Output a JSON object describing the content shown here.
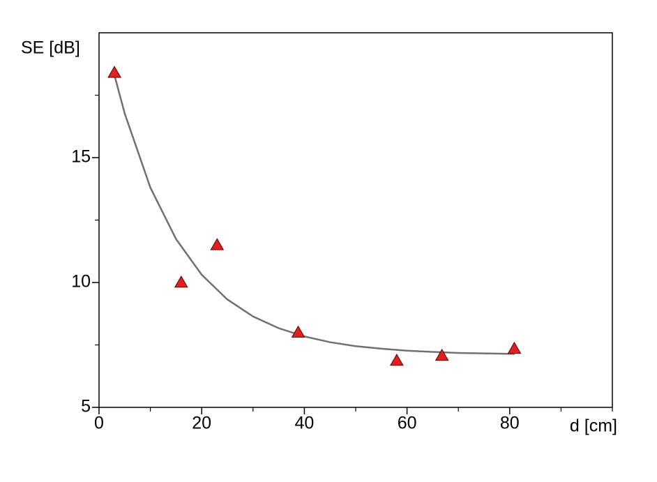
{
  "chart_data": {
    "type": "scatter",
    "xlabel": "d [cm]",
    "ylabel": "SE [dB]",
    "xlim": [
      0,
      100
    ],
    "ylim": [
      5,
      20
    ],
    "xticks": [
      0,
      20,
      40,
      60,
      80
    ],
    "yticks": [
      5,
      10,
      15
    ],
    "xminor": [
      10,
      30,
      50,
      70,
      90,
      100
    ],
    "yminor": [
      7.5,
      12.5,
      17.5
    ],
    "series": [
      {
        "type": "scatter",
        "color": "#e02020",
        "x": [
          3,
          16,
          23,
          38.8,
          58,
          66.8,
          80.9
        ],
        "values": [
          18.4,
          10.0,
          11.5,
          8.0,
          6.87,
          7.07,
          7.35
        ]
      },
      {
        "type": "line",
        "color": "#707070",
        "x": [
          3,
          5,
          10,
          15,
          20,
          25,
          30,
          35,
          40,
          45,
          50,
          55,
          60,
          65,
          70,
          75,
          81
        ],
        "values": [
          18.3,
          16.77,
          13.8,
          11.74,
          10.31,
          9.32,
          8.64,
          8.17,
          7.84,
          7.61,
          7.45,
          7.35,
          7.27,
          7.22,
          7.18,
          7.16,
          7.14
        ]
      }
    ]
  }
}
